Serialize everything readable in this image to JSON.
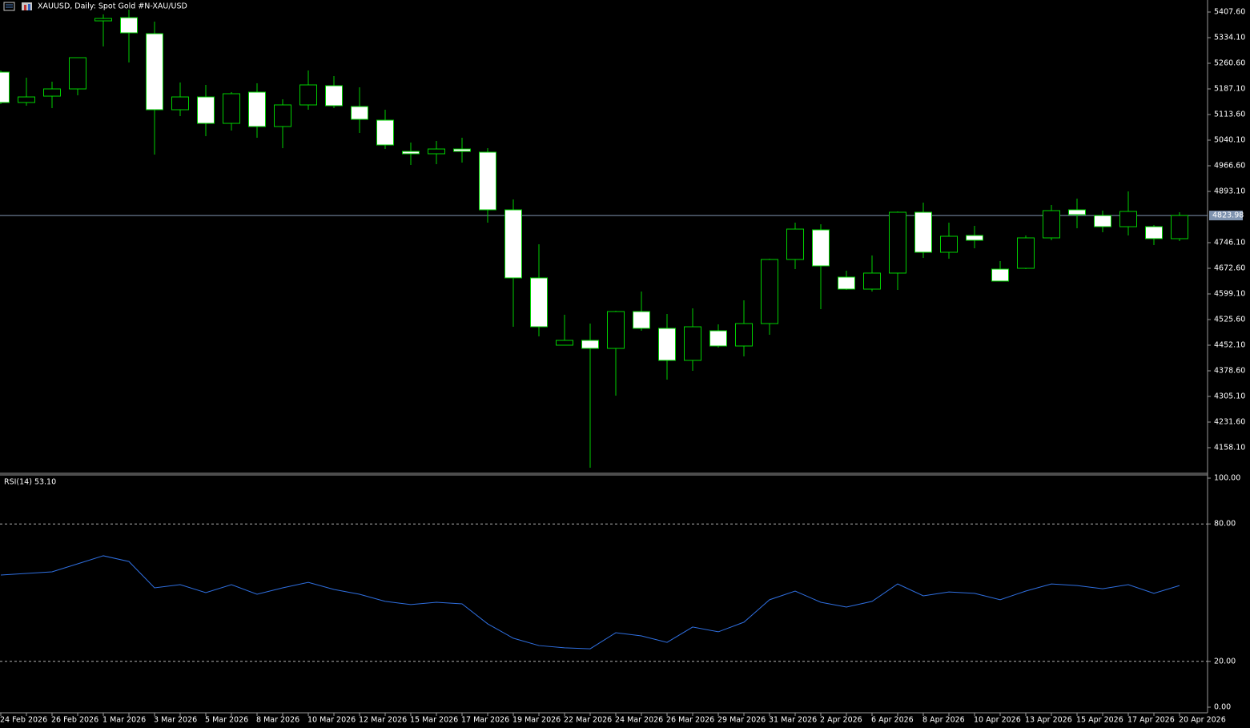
{
  "chart_data": [
    {
      "type": "candlestick",
      "title": "XAUUSD, Daily:  Spot Gold #N-XAU/USD",
      "categories": [
        "24 Feb 2026",
        null,
        "26 Feb 2026",
        null,
        "1 Mar 2026",
        null,
        "3 Mar 2026",
        null,
        "5 Mar 2026",
        null,
        "8 Mar 2026",
        null,
        "10 Mar 2026",
        null,
        "12 Mar 2026",
        null,
        "15 Mar 2026",
        null,
        "17 Mar 2026",
        null,
        "19 Mar 2026",
        null,
        "22 Mar 2026",
        null,
        "24 Mar 2026",
        null,
        "26 Mar 2026",
        null,
        "29 Mar 2026",
        null,
        "31 Mar 2026",
        null,
        "2 Apr 2026",
        null,
        "6 Apr 2026",
        null,
        "8 Apr 2026",
        null,
        "10 Apr 2026",
        null,
        "13 Apr 2026",
        null,
        "15 Apr 2026",
        null,
        "17 Apr 2026",
        null,
        "20 Apr 2026"
      ],
      "open": [
        5235.3,
        5148.1,
        5166.4,
        5187.1,
        5382.3,
        5391.5,
        5345.6,
        5127.4,
        5164.1,
        5088.3,
        5177.9,
        5079.2,
        5141.2,
        5196.3,
        5136.6,
        5097.5,
        5007.9,
        5001.1,
        5014.8,
        5005.7,
        4840.3,
        4645.1,
        4452.1,
        4465.9,
        4442.9,
        4548.6,
        4500.4,
        4408.5,
        4493.5,
        4449.8,
        4514.1,
        4697.9,
        4782.9,
        4647.4,
        4612.9,
        4658.9,
        4833.4,
        4718.6,
        4766.8,
        4670.3,
        4672.6,
        4759.9,
        4840.3,
        4824.0,
        4792.0,
        4792.0,
        4757.6
      ],
      "high": [
        5239.9,
        5219.3,
        5207.8,
        5276.7,
        5400.7,
        5414.5,
        5380.0,
        5205.5,
        5198.6,
        5177.9,
        5203.2,
        5157.2,
        5239.9,
        5223.9,
        5191.7,
        5127.4,
        5033.2,
        5037.8,
        5047.0,
        5017.1,
        4870.2,
        4741.5,
        4539.4,
        4514.1,
        4550.9,
        4606.0,
        4541.7,
        4557.8,
        4511.8,
        4580.8,
        4700.2,
        4803.5,
        4798.9,
        4665.7,
        4709.4,
        4835.7,
        4861.0,
        4803.5,
        4794.3,
        4693.3,
        4766.8,
        4854.1,
        4872.4,
        4838.0,
        4893.1,
        4796.6,
        4833.4
      ],
      "low": [
        5143.5,
        5138.9,
        5132.0,
        5168.7,
        5308.8,
        5262.9,
        4998.8,
        5109.0,
        5051.6,
        5067.7,
        5047.0,
        5017.1,
        5127.4,
        5132.0,
        5060.8,
        5014.8,
        4968.9,
        4971.2,
        4975.8,
        4803.5,
        4504.9,
        4477.4,
        4452.1,
        4100.7,
        4307.4,
        4493.5,
        4353.4,
        4378.6,
        4445.2,
        4420.0,
        4482.0,
        4670.3,
        4555.5,
        4610.6,
        4606.0,
        4610.6,
        4702.5,
        4700.2,
        4730.0,
        4635.9,
        4670.3,
        4753.0,
        4787.4,
        4776.0,
        4766.8,
        4739.2,
        4750.7
      ],
      "close": [
        5148.1,
        5164.1,
        5187.1,
        5276.7,
        5389.2,
        5347.9,
        5127.4,
        5164.1,
        5088.3,
        5173.3,
        5079.2,
        5141.2,
        5198.6,
        5138.9,
        5099.8,
        5026.3,
        5001.1,
        5014.8,
        5007.9,
        4840.3,
        4645.1,
        4504.9,
        4465.9,
        4442.9,
        4548.6,
        4500.4,
        4408.5,
        4504.9,
        4449.8,
        4514.1,
        4697.9,
        4785.1,
        4679.5,
        4612.9,
        4658.9,
        4833.4,
        4718.6,
        4764.5,
        4753.0,
        4635.9,
        4759.9,
        4838.0,
        4826.5,
        4792.0,
        4835.7,
        4757.6,
        4823.98
      ],
      "up_color": "#000000",
      "down_color": "#ffffff",
      "line_color": "#00d000",
      "last_price": 4823.98,
      "ylim": [
        4086.9,
        5437.5
      ],
      "yticks": [
        {
          "value": 5407.6,
          "label": "5407.60"
        },
        {
          "value": 5334.1,
          "label": "5334.10"
        },
        {
          "value": 5260.6,
          "label": "5260.60"
        },
        {
          "value": 5187.1,
          "label": "5187.10"
        },
        {
          "value": 5113.6,
          "label": "5113.60"
        },
        {
          "value": 5040.1,
          "label": "5040.10"
        },
        {
          "value": 4966.6,
          "label": "4966.60"
        },
        {
          "value": 4893.1,
          "label": "4893.10"
        },
        {
          "value": 4746.1,
          "label": "4746.10"
        },
        {
          "value": 4672.6,
          "label": "4672.60"
        },
        {
          "value": 4599.1,
          "label": "4599.10"
        },
        {
          "value": 4525.6,
          "label": "4525.60"
        },
        {
          "value": 4452.1,
          "label": "4452.10"
        },
        {
          "value": 4378.6,
          "label": "4378.60"
        },
        {
          "value": 4305.1,
          "label": "4305.10"
        },
        {
          "value": 4231.6,
          "label": "4231.60"
        },
        {
          "value": 4158.1,
          "label": "4158.10"
        }
      ]
    },
    {
      "type": "line",
      "title": "RSI(14) 53.10",
      "color": "#2f6fe0",
      "values": [
        57.7,
        58.4,
        59.1,
        62.6,
        66.1,
        63.6,
        52.1,
        53.5,
        50.0,
        53.5,
        49.3,
        52.1,
        54.5,
        51.4,
        49.3,
        46.2,
        44.8,
        45.8,
        45.1,
        36.4,
        30.1,
        26.9,
        25.9,
        25.5,
        32.5,
        31.1,
        28.3,
        35.0,
        32.9,
        37.1,
        46.9,
        50.7,
        45.8,
        43.7,
        46.2,
        53.8,
        48.6,
        50.3,
        49.7,
        46.9,
        50.7,
        53.8,
        53.1,
        51.7,
        53.5,
        49.7,
        53.1
      ],
      "ylim": [
        0,
        100
      ],
      "yticks": [
        {
          "value": 100,
          "label": "100.00"
        },
        {
          "value": 80,
          "label": "80.00"
        },
        {
          "value": 20,
          "label": "20.00"
        },
        {
          "value": 0,
          "label": "0.00"
        }
      ],
      "levels": [
        80,
        20
      ]
    }
  ]
}
